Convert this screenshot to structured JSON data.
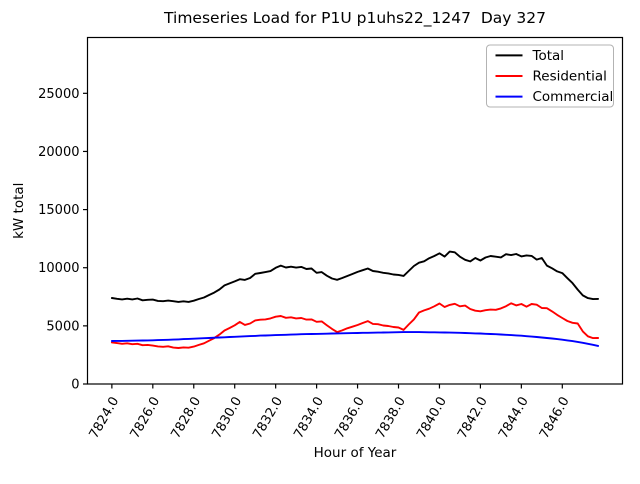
{
  "chart_data": {
    "type": "line",
    "title": "Timeseries Load for P1U p1uhs22_1247  Day 327",
    "xlabel": "Hour of Year",
    "ylabel": "kW total",
    "xlim": [
      7822.81,
      7848.94
    ],
    "ylim": [
      0,
      29800
    ],
    "grid": false,
    "legend_position": "upper right",
    "xticks": [
      7824,
      7826,
      7828,
      7830,
      7832,
      7834,
      7836,
      7838,
      7840,
      7842,
      7844,
      7846
    ],
    "xtick_labels": [
      "7824.0",
      "7826.0",
      "7828.0",
      "7830.0",
      "7832.0",
      "7834.0",
      "7836.0",
      "7838.0",
      "7840.0",
      "7842.0",
      "7844.0",
      "7846.0"
    ],
    "yticks": [
      0,
      5000,
      10000,
      15000,
      20000,
      25000
    ],
    "ytick_labels": [
      "0",
      "5000",
      "10000",
      "15000",
      "20000",
      "25000"
    ],
    "x": [
      7824.0,
      7824.25,
      7824.5,
      7824.75,
      7825.0,
      7825.25,
      7825.5,
      7825.75,
      7826.0,
      7826.25,
      7826.5,
      7826.75,
      7827.0,
      7827.25,
      7827.5,
      7827.75,
      7828.0,
      7828.25,
      7828.5,
      7828.75,
      7829.0,
      7829.25,
      7829.5,
      7829.75,
      7830.0,
      7830.25,
      7830.5,
      7830.75,
      7831.0,
      7831.25,
      7831.5,
      7831.75,
      7832.0,
      7832.25,
      7832.5,
      7832.75,
      7833.0,
      7833.25,
      7833.5,
      7833.75,
      7834.0,
      7834.25,
      7834.5,
      7834.75,
      7835.0,
      7835.25,
      7835.5,
      7835.75,
      7836.0,
      7836.25,
      7836.5,
      7836.75,
      7837.0,
      7837.25,
      7837.5,
      7837.75,
      7838.0,
      7838.25,
      7838.5,
      7838.75,
      7839.0,
      7839.25,
      7839.5,
      7839.75,
      7840.0,
      7840.25,
      7840.5,
      7840.75,
      7841.0,
      7841.25,
      7841.5,
      7841.75,
      7842.0,
      7842.25,
      7842.5,
      7842.75,
      7843.0,
      7843.25,
      7843.5,
      7843.75,
      7844.0,
      7844.25,
      7844.5,
      7844.75,
      7845.0,
      7845.25,
      7845.5,
      7845.75,
      7846.0,
      7846.25,
      7846.5,
      7846.75,
      7847.0,
      7847.25,
      7847.5,
      7847.75
    ],
    "series": [
      {
        "name": "Total",
        "color": "#000000",
        "values": [
          7400,
          7330,
          7280,
          7340,
          7280,
          7350,
          7200,
          7240,
          7260,
          7150,
          7120,
          7170,
          7120,
          7060,
          7110,
          7060,
          7160,
          7310,
          7440,
          7650,
          7860,
          8130,
          8480,
          8650,
          8820,
          9010,
          8950,
          9120,
          9480,
          9550,
          9620,
          9710,
          9990,
          10180,
          10020,
          10090,
          10010,
          10070,
          9890,
          9930,
          9560,
          9620,
          9310,
          9070,
          8960,
          9120,
          9290,
          9460,
          9640,
          9790,
          9930,
          9720,
          9660,
          9560,
          9510,
          9420,
          9380,
          9300,
          9720,
          10150,
          10430,
          10550,
          10820,
          11010,
          11240,
          10960,
          11390,
          11330,
          10950,
          10680,
          10540,
          10840,
          10620,
          10880,
          11010,
          10950,
          10890,
          11160,
          11090,
          11180,
          10970,
          11060,
          11020,
          10700,
          10840,
          10180,
          9950,
          9680,
          9540,
          9100,
          8680,
          8120,
          7620,
          7390,
          7300,
          7320
        ]
      },
      {
        "name": "Residential",
        "color": "#ff0000",
        "values": [
          3580,
          3520,
          3460,
          3500,
          3420,
          3460,
          3340,
          3360,
          3300,
          3230,
          3200,
          3240,
          3130,
          3100,
          3150,
          3120,
          3220,
          3360,
          3500,
          3720,
          3950,
          4250,
          4600,
          4820,
          5050,
          5340,
          5080,
          5200,
          5470,
          5530,
          5560,
          5640,
          5790,
          5850,
          5690,
          5740,
          5640,
          5680,
          5540,
          5560,
          5350,
          5380,
          5060,
          4740,
          4460,
          4610,
          4790,
          4930,
          5070,
          5250,
          5410,
          5170,
          5140,
          5030,
          4990,
          4900,
          4860,
          4650,
          5120,
          5560,
          6150,
          6330,
          6480,
          6680,
          6920,
          6620,
          6800,
          6900,
          6680,
          6740,
          6450,
          6300,
          6250,
          6350,
          6400,
          6380,
          6500,
          6690,
          6940,
          6760,
          6880,
          6650,
          6880,
          6820,
          6540,
          6520,
          6240,
          5940,
          5680,
          5420,
          5260,
          5200,
          4520,
          4100,
          3950,
          3960
        ]
      },
      {
        "name": "Commercial",
        "color": "#0000ff",
        "values": [
          3700,
          3705,
          3710,
          3715,
          3720,
          3730,
          3740,
          3750,
          3760,
          3775,
          3790,
          3805,
          3820,
          3840,
          3860,
          3880,
          3900,
          3920,
          3940,
          3960,
          3980,
          4000,
          4020,
          4040,
          4060,
          4080,
          4100,
          4120,
          4140,
          4160,
          4175,
          4190,
          4205,
          4220,
          4235,
          4250,
          4265,
          4280,
          4290,
          4300,
          4310,
          4320,
          4330,
          4340,
          4350,
          4360,
          4370,
          4380,
          4390,
          4400,
          4405,
          4410,
          4420,
          4430,
          4440,
          4450,
          4455,
          4460,
          4465,
          4465,
          4460,
          4455,
          4450,
          4445,
          4440,
          4430,
          4420,
          4410,
          4400,
          4385,
          4370,
          4355,
          4340,
          4320,
          4300,
          4280,
          4255,
          4230,
          4205,
          4180,
          4150,
          4115,
          4080,
          4040,
          4000,
          3955,
          3910,
          3860,
          3810,
          3750,
          3690,
          3620,
          3540,
          3460,
          3370,
          3280
        ]
      }
    ],
    "legend": {
      "entries": [
        "Total",
        "Residential",
        "Commercial"
      ],
      "border_color": "#b3b3b3",
      "background": "#ffffff"
    },
    "axes": {
      "spine_color": "#000000",
      "background": "#ffffff"
    }
  }
}
